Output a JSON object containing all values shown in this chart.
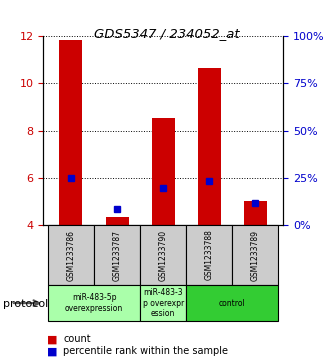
{
  "title": "GDS5347 / 234052_at",
  "samples": [
    "GSM1233786",
    "GSM1233787",
    "GSM1233790",
    "GSM1233788",
    "GSM1233789"
  ],
  "count_values": [
    11.85,
    4.35,
    8.55,
    10.65,
    5.0
  ],
  "count_base": 4.0,
  "percentile_values": [
    6.0,
    4.7,
    5.55,
    5.85,
    4.95
  ],
  "ylim_left": [
    4,
    12
  ],
  "ylim_right": [
    0,
    100
  ],
  "yticks_left": [
    4,
    6,
    8,
    10,
    12
  ],
  "yticks_right": [
    0,
    25,
    50,
    75,
    100
  ],
  "ytick_labels_right": [
    "0%",
    "25%",
    "50%",
    "75%",
    "100%"
  ],
  "bar_color": "#cc0000",
  "pct_color": "#0000cc",
  "bar_width": 0.5,
  "protocol_groups": [
    {
      "label": "miR-483-5p\noverexpression",
      "indices": [
        0,
        1
      ],
      "color": "#aaffaa"
    },
    {
      "label": "miR-483-3\np overexpr\nession",
      "indices": [
        2
      ],
      "color": "#aaffaa"
    },
    {
      "label": "control",
      "indices": [
        3,
        4
      ],
      "color": "#33cc33"
    }
  ],
  "legend_count_label": "count",
  "legend_pct_label": "percentile rank within the sample",
  "protocol_label": "protocol",
  "tick_label_color_left": "#cc0000",
  "tick_label_color_right": "#0000cc"
}
